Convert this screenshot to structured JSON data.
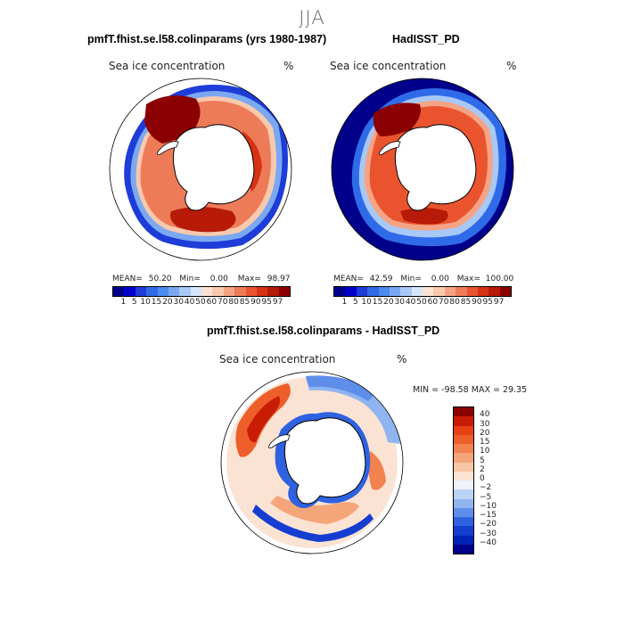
{
  "season_title": "JJA",
  "maps": [
    {
      "title": "pmfT.fhist.se.l58.colinparams (yrs 1980-1987)",
      "variable_label": "Sea ice concentration",
      "units": "%",
      "stats": {
        "mean_label": "MEAN=",
        "mean": "50.20",
        "min_label": "Min=",
        "min": "0.00",
        "max_label": "Max=",
        "max": "98.97"
      }
    },
    {
      "title": "HadISST_PD",
      "variable_label": "Sea ice concentration",
      "units": "%",
      "stats": {
        "mean_label": "MEAN=",
        "mean": "42.59",
        "min_label": "Min=",
        "min": "0.00",
        "max_label": "Max=",
        "max": "100.00"
      }
    },
    {
      "title": "pmfT.fhist.se.l58.colinparams - HadISST_PD",
      "variable_label": "Sea ice concentration",
      "units": "%",
      "stats_line": "MIN = -98.58 MAX =  29.35"
    }
  ],
  "abs_colorbar": {
    "labels": [
      "1",
      "5",
      "10",
      "15",
      "20",
      "30",
      "40",
      "50",
      "60",
      "70",
      "80",
      "85",
      "90",
      "95",
      "97"
    ],
    "colors": [
      "#00008B",
      "#0000CD",
      "#1E3CD8",
      "#2F6BE8",
      "#4A8BEE",
      "#7AA9F2",
      "#A8C8F8",
      "#D6E6FB",
      "#FBE3D3",
      "#F9C9AE",
      "#F4A484",
      "#EE7B58",
      "#E9542F",
      "#D83214",
      "#B81A08",
      "#8B0000"
    ]
  },
  "diff_colorbar": {
    "labels": [
      "40",
      "30",
      "20",
      "15",
      "10",
      "5",
      "2",
      "0",
      "−2",
      "−5",
      "−10",
      "−15",
      "−20",
      "−30",
      "−40"
    ],
    "colors": [
      "#8B0000",
      "#C81C05",
      "#E63F14",
      "#EE5E2A",
      "#F2824E",
      "#F5A57A",
      "#F8C6A5",
      "#FBE3D3",
      "#EEF3FA",
      "#BBD3F5",
      "#8FB4F0",
      "#5E8EEA",
      "#2F62E0",
      "#153ED1",
      "#0022B5",
      "#00008B"
    ]
  }
}
